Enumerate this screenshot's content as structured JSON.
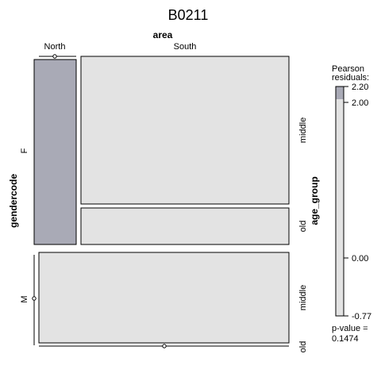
{
  "chart_data": {
    "type": "mosaic",
    "title": "B0211",
    "variables": {
      "top": "area",
      "left": "gendercode",
      "right": "age_group"
    },
    "levels": {
      "area": [
        "North",
        "South"
      ],
      "gendercode": [
        "F",
        "M"
      ],
      "age_group": [
        "middle",
        "old"
      ]
    },
    "tiles": [
      {
        "gendercode": "F",
        "area": "North",
        "age_group": "middle",
        "shade": "positive"
      },
      {
        "gendercode": "F",
        "area": "North",
        "age_group": "old",
        "shade": "empty"
      },
      {
        "gendercode": "F",
        "area": "South",
        "age_group": "middle",
        "shade": "none"
      },
      {
        "gendercode": "F",
        "area": "South",
        "age_group": "old",
        "shade": "none"
      },
      {
        "gendercode": "M",
        "area": "North",
        "age_group": "middle",
        "shade": "empty"
      },
      {
        "gendercode": "M",
        "area": "North",
        "age_group": "old",
        "shade": "empty"
      },
      {
        "gendercode": "M",
        "area": "South",
        "age_group": "middle",
        "shade": "none"
      },
      {
        "gendercode": "M",
        "area": "South",
        "age_group": "old",
        "shade": "empty"
      }
    ],
    "legend": {
      "title_line1": "Pearson",
      "title_line2": "residuals:",
      "ticks": [
        "2.20",
        "2.00",
        "0.00",
        "-0.77"
      ],
      "min": -0.77,
      "max": 2.2,
      "shade_threshold": 2.0,
      "pvalue_line1": "p-value =",
      "pvalue_line2": "0.1474",
      "placement": "right"
    },
    "colors": {
      "positive": "#a9aab6",
      "neutral": "#e3e3e3",
      "border": "#000000"
    }
  }
}
